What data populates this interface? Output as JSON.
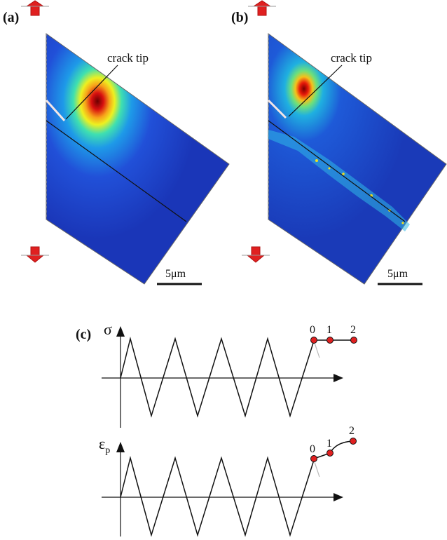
{
  "panels": {
    "a": {
      "label": "(a)",
      "annotation": "crack tip",
      "scale_bar": "5μm"
    },
    "b": {
      "label": "(b)",
      "annotation": "crack tip",
      "scale_bar": "5μm"
    },
    "c": {
      "label": "(c)",
      "top_axis_symbol": "σ",
      "bottom_axis_symbol": "ε",
      "bottom_axis_subscript": "p",
      "points": [
        "0",
        "1",
        "2"
      ]
    }
  },
  "colors": {
    "field_low": "#1a3fc4",
    "field_mid": "#2fe0c8",
    "field_high": "#f2e21a",
    "field_peak": "#8b0000",
    "marker": "#e02020",
    "arrow": "#e02020"
  }
}
